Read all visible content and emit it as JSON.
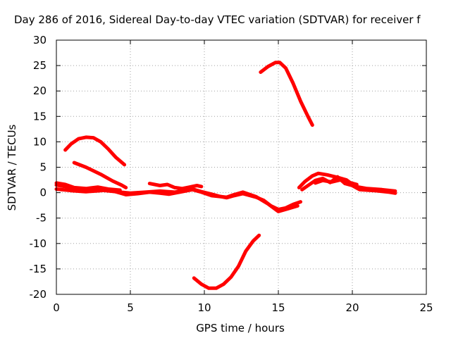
{
  "chart_data": {
    "type": "line",
    "title": "Day 286 of 2016, Sidereal Day-to-day VTEC variation (SDTVAR) for receiver f",
    "xlabel": "GPS time / hours",
    "ylabel": "SDTVAR / TECUs",
    "xlim": [
      0,
      25
    ],
    "ylim": [
      -20,
      30
    ],
    "x_ticks": [
      0,
      5,
      10,
      15,
      20,
      25
    ],
    "y_ticks": [
      -20,
      -15,
      -10,
      -5,
      0,
      5,
      10,
      15,
      20,
      25,
      30
    ],
    "grid": true,
    "legend": "none",
    "colors": {
      "series": "#ff0000"
    },
    "series": [
      {
        "x": [
          0.0,
          1.0,
          2.0,
          3.0,
          4.0,
          5.0,
          6.0,
          7.0,
          8.0,
          8.6,
          9.2,
          9.8,
          10.5,
          11.0,
          11.5,
          12.0,
          12.6,
          13.0,
          13.5,
          14.0,
          14.5,
          15.0,
          15.5,
          16.0,
          16.5
        ],
        "y": [
          1.5,
          1.0,
          0.6,
          0.5,
          0.2,
          -0.1,
          0.1,
          0.3,
          0.1,
          0.4,
          0.7,
          0.2,
          -0.3,
          -0.7,
          -1.0,
          -0.6,
          -0.2,
          -0.5,
          -0.9,
          -1.5,
          -2.6,
          -3.3,
          -3.0,
          -2.3,
          -1.8
        ]
      },
      {
        "x": [
          0.0,
          1.0,
          2.0,
          3.0,
          3.5,
          4.0,
          4.7,
          5.5,
          6.3,
          7.0,
          7.6,
          8.5,
          9.2,
          9.8,
          10.5,
          11.5,
          12.0,
          12.6,
          13.5,
          14.3,
          15.0,
          15.6,
          16.3
        ],
        "y": [
          0.7,
          0.4,
          0.2,
          0.4,
          0.6,
          0.2,
          -0.4,
          -0.2,
          0.1,
          -0.1,
          -0.3,
          0.2,
          0.6,
          0.1,
          -0.6,
          -0.9,
          -0.4,
          0.1,
          -0.8,
          -2.2,
          -3.7,
          -3.2,
          -2.6
        ]
      },
      {
        "x": [
          0.0,
          0.6,
          1.2,
          2.0,
          2.8,
          3.5,
          4.3
        ],
        "y": [
          1.9,
          1.6,
          1.0,
          0.8,
          1.1,
          0.7,
          0.5
        ]
      },
      {
        "x": [
          0.6,
          1.0,
          1.5,
          2.0,
          2.5,
          3.0,
          3.5,
          4.0,
          4.6
        ],
        "y": [
          8.4,
          9.6,
          10.6,
          10.9,
          10.8,
          10.0,
          8.6,
          7.0,
          5.5
        ]
      },
      {
        "x": [
          1.2,
          2.0,
          3.0,
          3.8,
          4.4,
          4.7
        ],
        "y": [
          5.9,
          5.0,
          3.6,
          2.3,
          1.5,
          1.0
        ]
      },
      {
        "x": [
          6.3,
          7.0,
          7.5,
          8.0,
          8.5,
          9.0,
          9.5,
          9.8
        ],
        "y": [
          1.8,
          1.4,
          1.6,
          1.0,
          0.8,
          1.1,
          1.4,
          1.2
        ]
      },
      {
        "x": [
          9.3,
          9.8,
          10.3,
          10.8,
          11.3,
          11.8,
          12.3,
          12.8,
          13.3,
          13.7
        ],
        "y": [
          -16.8,
          -18.0,
          -18.8,
          -18.8,
          -18.0,
          -16.6,
          -14.5,
          -11.5,
          -9.5,
          -8.4
        ]
      },
      {
        "x": [
          13.8,
          14.3,
          14.8,
          15.1,
          15.5,
          16.0,
          16.5,
          17.0,
          17.3
        ],
        "y": [
          23.7,
          24.8,
          25.6,
          25.6,
          24.5,
          21.5,
          18.0,
          15.0,
          13.3
        ]
      },
      {
        "x": [
          16.4,
          16.8,
          17.3,
          17.7,
          18.3,
          19.0,
          19.6,
          20.2,
          21.0,
          22.0,
          22.9
        ],
        "y": [
          1.0,
          2.2,
          3.3,
          3.8,
          3.5,
          3.0,
          2.5,
          1.2,
          0.8,
          0.6,
          0.3
        ]
      },
      {
        "x": [
          16.6,
          17.0,
          17.5,
          18.0,
          18.5,
          19.0,
          19.5,
          20.0,
          20.5,
          21.5,
          22.5,
          22.9
        ],
        "y": [
          0.6,
          1.4,
          2.4,
          2.8,
          2.0,
          3.1,
          1.8,
          1.4,
          0.6,
          0.4,
          0.1,
          -0.1
        ]
      },
      {
        "x": [
          17.5,
          18.0,
          18.6,
          19.2,
          19.8,
          20.3
        ],
        "y": [
          1.9,
          2.4,
          2.1,
          2.5,
          2.0,
          1.6
        ]
      }
    ]
  }
}
